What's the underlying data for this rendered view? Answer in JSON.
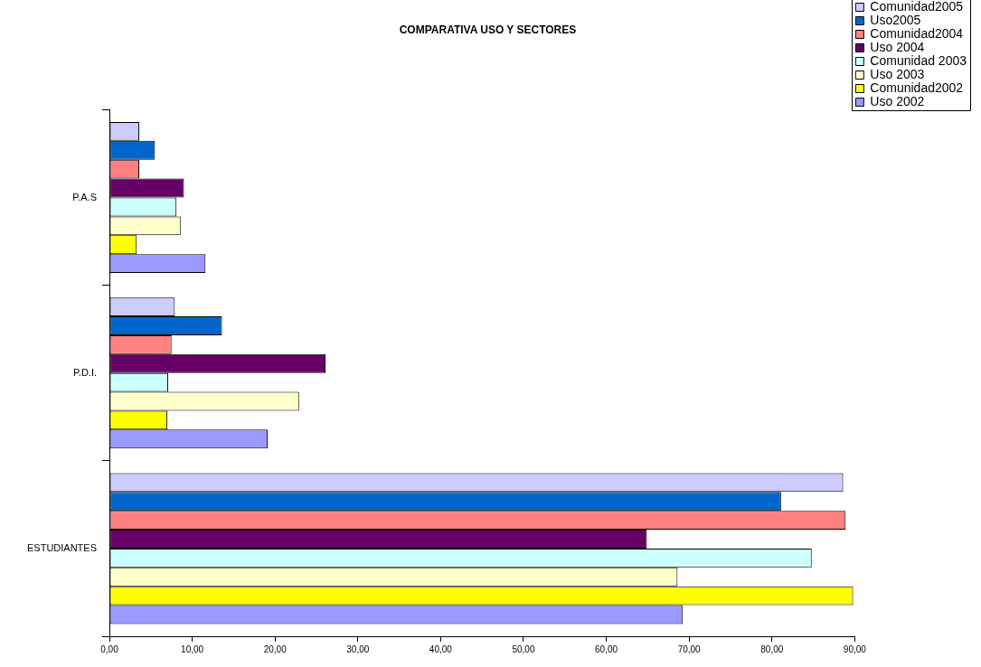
{
  "chart_data": {
    "type": "bar",
    "orientation": "horizontal",
    "title": "COMPARATIVA USO Y SECTORES",
    "categories": [
      "P.A.S",
      "P.D.I.",
      "ESTUDIANTES"
    ],
    "series": [
      {
        "name": "Comunidad2005",
        "color": "#ccccff",
        "values": [
          3.6,
          7.9,
          88.6
        ]
      },
      {
        "name": "Uso2005",
        "color": "#0066cc",
        "values": [
          5.5,
          13.6,
          81.1
        ]
      },
      {
        "name": "Comunidad2004",
        "color": "#ff8080",
        "values": [
          3.6,
          7.5,
          88.9
        ]
      },
      {
        "name": "Uso 2004",
        "color": "#660066",
        "values": [
          9.0,
          26.1,
          64.9
        ]
      },
      {
        "name": "Comunidad 2003",
        "color": "#ccffff",
        "values": [
          8.1,
          7.1,
          84.8
        ]
      },
      {
        "name": "Uso 2003",
        "color": "#ffffcc",
        "values": [
          8.6,
          22.9,
          68.6
        ]
      },
      {
        "name": "Comunidad2002",
        "color": "#ffff00",
        "values": [
          3.3,
          7.0,
          89.8
        ]
      },
      {
        "name": "Uso 2002",
        "color": "#9999ff",
        "values": [
          11.6,
          19.1,
          69.2
        ]
      }
    ],
    "xlim": [
      0,
      90
    ],
    "xticks": [
      {
        "value": 0,
        "label": "0,00"
      },
      {
        "value": 10,
        "label": "10,00"
      },
      {
        "value": 20,
        "label": "20,00"
      },
      {
        "value": 30,
        "label": "30,00"
      },
      {
        "value": 40,
        "label": "40,00"
      },
      {
        "value": 50,
        "label": "50,00"
      },
      {
        "value": 60,
        "label": "60,00"
      },
      {
        "value": 70,
        "label": "70,00"
      },
      {
        "value": 80,
        "label": "80,00"
      },
      {
        "value": 90,
        "label": "90,00"
      }
    ],
    "legend": "top right"
  }
}
